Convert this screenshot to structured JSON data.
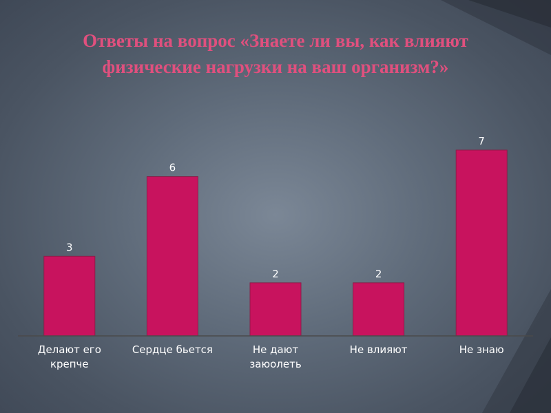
{
  "title_line1": "Ответы на вопрос «Знаете ли вы, как влияют",
  "title_line2": "физические нагрузки на ваш организм?»",
  "colors": {
    "bar": "#c8135e",
    "title": "#e0507e",
    "axis": "#4a4a4a"
  },
  "chart_data": {
    "type": "bar",
    "categories": [
      [
        "Делают его",
        "крепче"
      ],
      [
        "Сердце бьется"
      ],
      [
        "Не дают",
        "заюолеть"
      ],
      [
        "Не влияют"
      ],
      [
        "Не знаю"
      ]
    ],
    "values": [
      3,
      6,
      2,
      2,
      7
    ],
    "data_labels": [
      "3",
      "6",
      "2",
      "2",
      "7"
    ],
    "xlabel": "",
    "ylabel": "",
    "ylim": [
      0,
      7
    ],
    "grid": false,
    "legend": "none"
  }
}
